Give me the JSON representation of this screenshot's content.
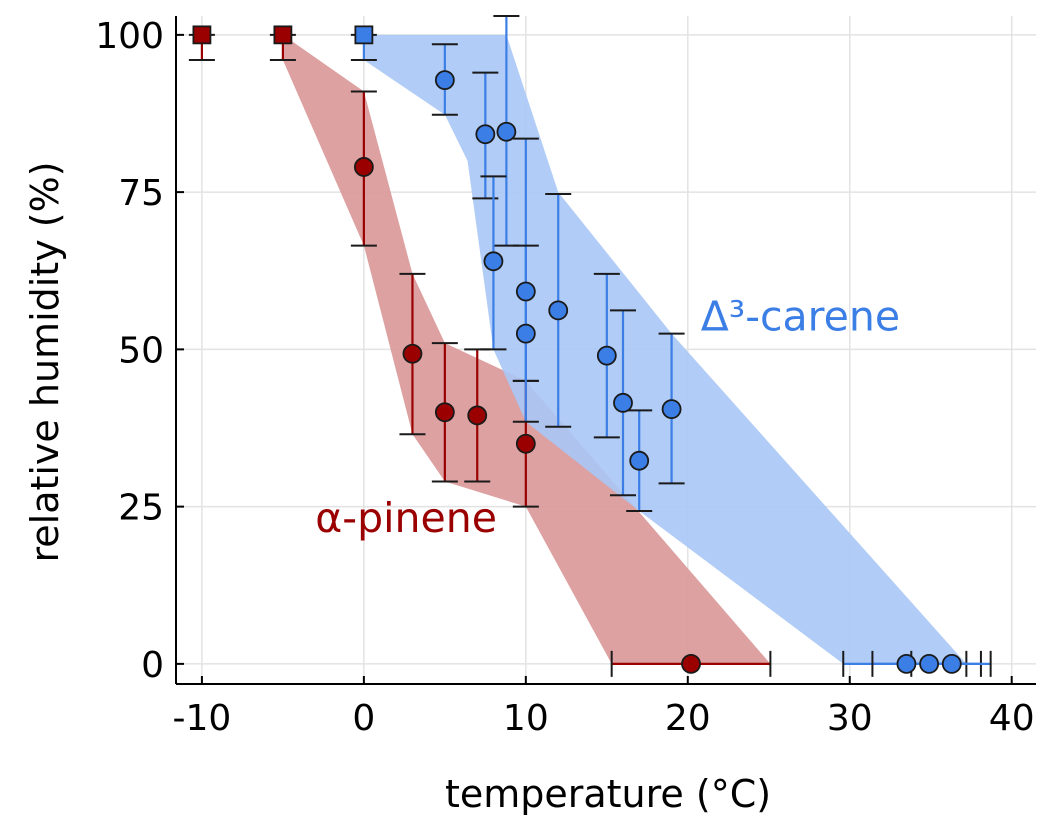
{
  "chart_data": {
    "type": "scatter",
    "title": "",
    "xlabel": "temperature (°C)",
    "ylabel": "relative humidity (%)",
    "xlim": [
      -11.6,
      41.5
    ],
    "ylim": [
      -3.2,
      103
    ],
    "xticks": [
      -10,
      0,
      10,
      20,
      30,
      40
    ],
    "yticks": [
      0,
      25,
      50,
      75,
      100
    ],
    "grid": true,
    "legend": "none",
    "colors": {
      "alpha_pinene": "#9a0000",
      "alpha_pinene_band": "#d99797",
      "carene": "#3b7ee6",
      "carene_band": "#a9c6f5"
    },
    "annotations": [
      {
        "text": "Δ³-carene",
        "x": 20.8,
        "y": 53,
        "series": "carene"
      },
      {
        "text": "α-pinene",
        "x": -3,
        "y": 21,
        "series": "alpha_pinene"
      }
    ],
    "series": [
      {
        "key": "alpha_pinene",
        "color": "#9a0000",
        "squares": [
          {
            "x": -10,
            "y": 100,
            "yerr": [
              96,
              100
            ]
          },
          {
            "x": -5,
            "y": 100,
            "yerr": [
              96,
              100
            ]
          }
        ],
        "points": [
          {
            "x": 0,
            "y": 79,
            "yerr": [
              66.5,
              91
            ]
          },
          {
            "x": 3,
            "y": 49.3,
            "yerr": [
              36.5,
              62
            ]
          },
          {
            "x": 5,
            "y": 40,
            "yerr": [
              29,
              51
            ]
          },
          {
            "x": 7,
            "y": 39.5,
            "yerr": [
              29,
              50
            ]
          },
          {
            "x": 10,
            "y": 35,
            "yerr": [
              25,
              45
            ]
          },
          {
            "x": 20.2,
            "y": 0,
            "xerr": [
              15.3,
              25.1
            ]
          }
        ],
        "band": [
          [
            -5,
            100
          ],
          [
            0,
            91
          ],
          [
            3,
            62
          ],
          [
            5,
            51
          ],
          [
            10,
            45
          ],
          [
            25.1,
            0
          ],
          [
            15.3,
            0
          ],
          [
            10,
            25
          ],
          [
            5,
            29
          ],
          [
            3,
            36.5
          ],
          [
            0,
            66.5
          ],
          [
            -5,
            96
          ]
        ]
      },
      {
        "key": "carene",
        "color": "#3b7ee6",
        "squares": [
          {
            "x": 0,
            "y": 100,
            "yerr": [
              96,
              100
            ]
          }
        ],
        "points": [
          {
            "x": 5,
            "y": 92.8,
            "yerr": [
              87.3,
              98.5
            ]
          },
          {
            "x": 7.5,
            "y": 84.2,
            "yerr": [
              74,
              94
            ]
          },
          {
            "x": 8.8,
            "y": 84.6,
            "yerr": [
              66.5,
              103
            ]
          },
          {
            "x": 8,
            "y": 64,
            "yerr": [
              50,
              77.5
            ]
          },
          {
            "x": 10,
            "y": 59.2,
            "yerr": [
              45,
              83.5
            ]
          },
          {
            "x": 10,
            "y": 52.5,
            "yerr": [
              38.5,
              66.5
            ]
          },
          {
            "x": 12,
            "y": 56.2,
            "yerr": [
              37.7,
              74.7
            ]
          },
          {
            "x": 15,
            "y": 49,
            "yerr": [
              36,
              62
            ]
          },
          {
            "x": 16,
            "y": 41.5,
            "yerr": [
              26.8,
              56.2
            ]
          },
          {
            "x": 17,
            "y": 32.3,
            "yerr": [
              24.3,
              40.3
            ]
          },
          {
            "x": 19,
            "y": 40.5,
            "yerr": [
              28.7,
              52.5
            ]
          },
          {
            "x": 33.5,
            "y": 0,
            "xerr": [
              29.6,
              37.2
            ]
          },
          {
            "x": 34.9,
            "y": 0,
            "xerr": [
              31.4,
              38.1
            ]
          },
          {
            "x": 36.3,
            "y": 0,
            "xerr": [
              33.8,
              38.7
            ]
          }
        ],
        "band": [
          [
            0,
            100
          ],
          [
            8.8,
            100
          ],
          [
            12,
            75
          ],
          [
            19,
            52.5
          ],
          [
            37.2,
            0
          ],
          [
            29.6,
            0
          ],
          [
            17,
            24.3
          ],
          [
            10,
            38.5
          ],
          [
            8,
            50
          ],
          [
            6.4,
            80
          ],
          [
            5,
            87.3
          ],
          [
            0,
            96
          ]
        ]
      }
    ]
  }
}
